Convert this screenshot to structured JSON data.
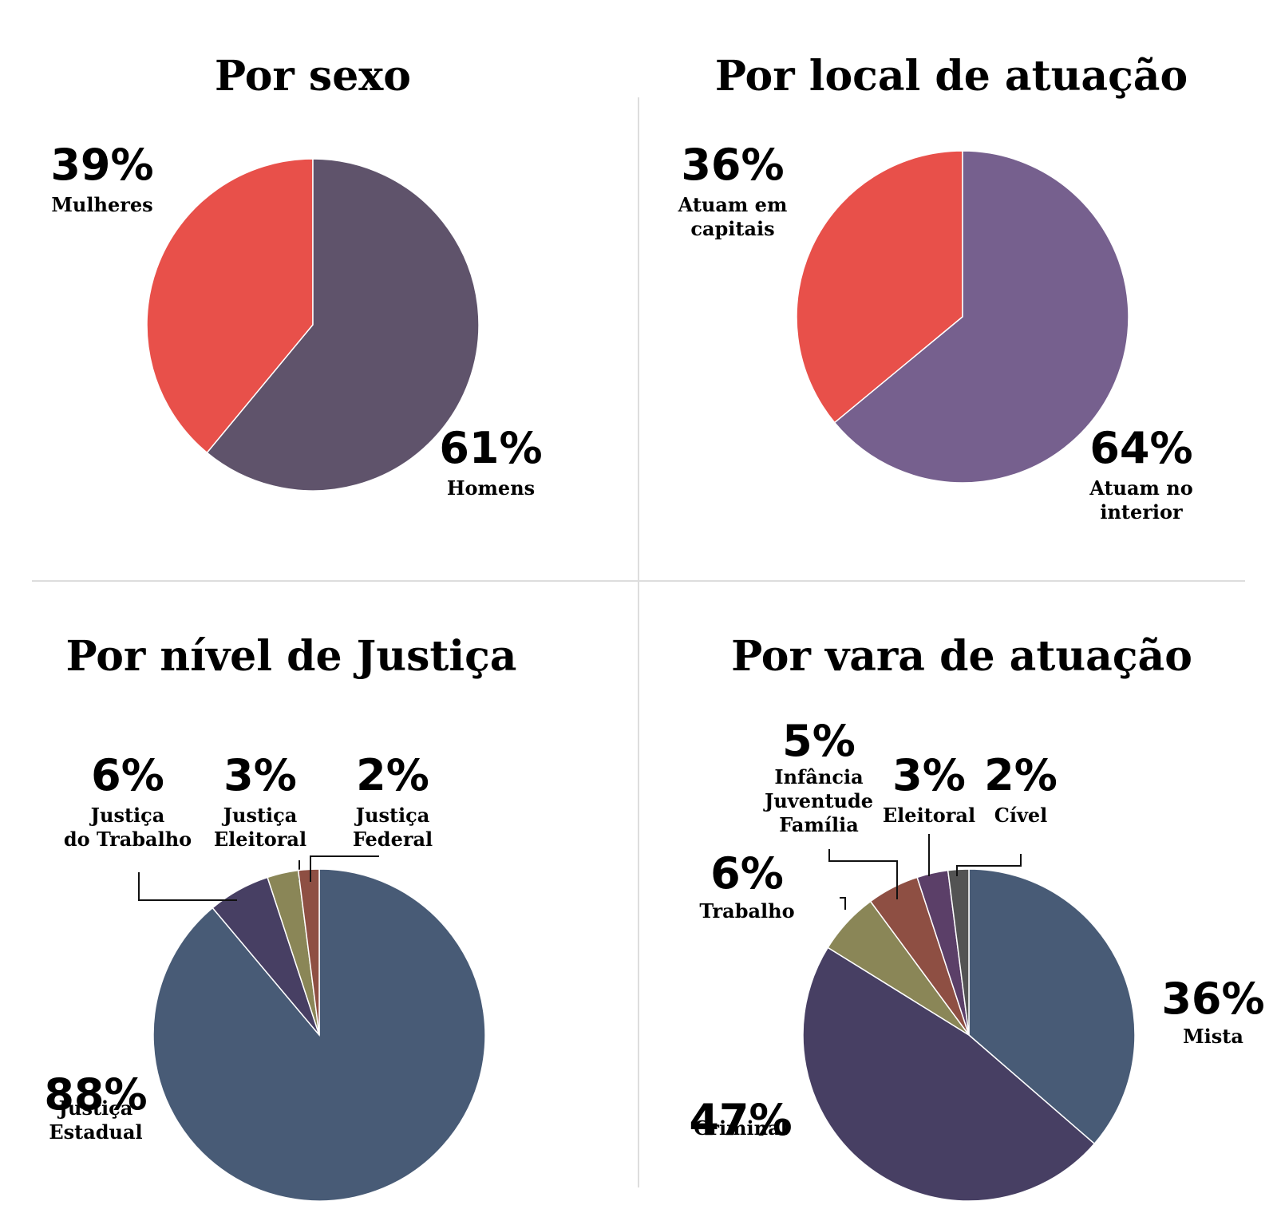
{
  "colors": {
    "red": "#e8504a",
    "dark_purple": "#5f536b",
    "light_purple": "#76608e",
    "slate_blue": "#485b76",
    "deep_purple": "#473f63",
    "olive": "#8a8657",
    "rust": "#8e4f43",
    "plum": "#5b3f68",
    "gray": "#535353",
    "rule": "#dddddd"
  },
  "chart_data": [
    {
      "type": "pie",
      "title": "Por sexo",
      "slices": [
        {
          "value": 39,
          "pct": "39%",
          "label": [
            "Mulheres"
          ],
          "color": "red"
        },
        {
          "value": 61,
          "pct": "61%",
          "label": [
            "Homens"
          ],
          "color": "dark_purple"
        }
      ]
    },
    {
      "type": "pie",
      "title": "Por local de atuação",
      "slices": [
        {
          "value": 36,
          "pct": "36%",
          "label": [
            "Atuam em",
            "capitais"
          ],
          "color": "red"
        },
        {
          "value": 64,
          "pct": "64%",
          "label": [
            "Atuam no",
            "interior"
          ],
          "color": "light_purple"
        }
      ]
    },
    {
      "type": "pie",
      "title": "Por nível de Justiça",
      "slices": [
        {
          "value": 88,
          "pct": "88%",
          "label": [
            "Justiça",
            "Estadual"
          ],
          "color": "slate_blue"
        },
        {
          "value": 6,
          "pct": "6%",
          "label": [
            "Justiça",
            "do Trabalho"
          ],
          "color": "deep_purple"
        },
        {
          "value": 3,
          "pct": "3%",
          "label": [
            "Justiça",
            "Eleitoral"
          ],
          "color": "olive"
        },
        {
          "value": 2,
          "pct": "2%",
          "label": [
            "Justiça",
            "Federal"
          ],
          "color": "rust"
        }
      ]
    },
    {
      "type": "pie",
      "title": "Por vara de atuação",
      "slices": [
        {
          "value": 36,
          "pct": "36%",
          "label": [
            "Mista"
          ],
          "color": "slate_blue"
        },
        {
          "value": 47,
          "pct": "47%",
          "label": [
            "Criminal"
          ],
          "color": "deep_purple"
        },
        {
          "value": 6,
          "pct": "6%",
          "label": [
            "Trabalho"
          ],
          "color": "olive"
        },
        {
          "value": 5,
          "pct": "5%",
          "label": [
            "Infância",
            "Juventude",
            "Família"
          ],
          "color": "rust"
        },
        {
          "value": 3,
          "pct": "3%",
          "label": [
            "Eleitoral"
          ],
          "color": "plum"
        },
        {
          "value": 2,
          "pct": "2%",
          "label": [
            "Cível"
          ],
          "color": "gray"
        }
      ]
    }
  ]
}
